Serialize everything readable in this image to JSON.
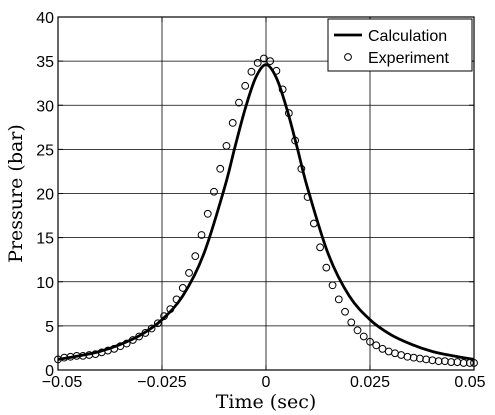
{
  "chart_data": {
    "type": "line",
    "xlabel": "Time (sec)",
    "ylabel": "Pressure (bar)",
    "xlim": [
      -0.05,
      0.05
    ],
    "ylim": [
      0,
      40
    ],
    "x_ticks": [
      -0.05,
      -0.025,
      0,
      0.025,
      0.05
    ],
    "x_tick_labels": [
      "−0.05",
      "−0.025",
      "0",
      "0.025",
      "0.05"
    ],
    "y_ticks": [
      0,
      5,
      10,
      15,
      20,
      25,
      30,
      35,
      40
    ],
    "y_tick_labels": [
      "0",
      "5",
      "10",
      "15",
      "20",
      "25",
      "30",
      "35",
      "40"
    ],
    "grid": true,
    "legend_position": "top-right",
    "series": [
      {
        "name": "Calculation",
        "style": "solid-line",
        "color": "#000000",
        "x": [
          -0.05,
          -0.045,
          -0.04,
          -0.035,
          -0.03,
          -0.025,
          -0.02,
          -0.015,
          -0.01,
          -0.0075,
          -0.005,
          -0.0025,
          0,
          0.0025,
          0.005,
          0.0075,
          0.01,
          0.015,
          0.02,
          0.025,
          0.03,
          0.035,
          0.04,
          0.045,
          0.05
        ],
        "y": [
          1.2,
          1.6,
          2.1,
          2.9,
          4.0,
          5.7,
          8.4,
          13.1,
          20.6,
          25.2,
          29.6,
          33.1,
          34.6,
          33.1,
          29.6,
          25.2,
          20.6,
          13.1,
          8.4,
          5.7,
          4.0,
          2.9,
          2.1,
          1.6,
          1.2
        ]
      },
      {
        "name": "Experiment",
        "style": "open-circle-markers",
        "color": "#000000",
        "x": [
          -0.05,
          -0.0485,
          -0.047,
          -0.0455,
          -0.044,
          -0.0425,
          -0.041,
          -0.0395,
          -0.038,
          -0.0365,
          -0.035,
          -0.0335,
          -0.032,
          -0.0305,
          -0.029,
          -0.0275,
          -0.026,
          -0.0245,
          -0.023,
          -0.0215,
          -0.02,
          -0.0185,
          -0.017,
          -0.0155,
          -0.014,
          -0.0125,
          -0.011,
          -0.0095,
          -0.008,
          -0.0065,
          -0.005,
          -0.0035,
          -0.002,
          -0.0005,
          0.001,
          0.0025,
          0.004,
          0.0055,
          0.007,
          0.0085,
          0.01,
          0.0115,
          0.013,
          0.0145,
          0.016,
          0.0175,
          0.019,
          0.0205,
          0.022,
          0.0235,
          0.025,
          0.0265,
          0.028,
          0.0295,
          0.031,
          0.0325,
          0.034,
          0.0355,
          0.037,
          0.0385,
          0.04,
          0.0415,
          0.043,
          0.0445,
          0.046,
          0.0475,
          0.049,
          0.05
        ],
        "y": [
          1.2,
          1.4,
          1.5,
          1.6,
          1.6,
          1.7,
          1.8,
          2.0,
          2.2,
          2.4,
          2.7,
          3.0,
          3.4,
          3.8,
          4.2,
          4.7,
          5.3,
          6.1,
          6.9,
          8.0,
          9.3,
          11.0,
          12.9,
          15.3,
          17.7,
          20.2,
          22.8,
          25.4,
          28.0,
          30.3,
          32.2,
          33.8,
          34.8,
          35.3,
          35.0,
          33.9,
          31.8,
          29.1,
          26.0,
          22.8,
          19.6,
          16.6,
          13.9,
          11.6,
          9.6,
          8.0,
          6.6,
          5.4,
          4.5,
          3.8,
          3.2,
          2.8,
          2.4,
          2.1,
          1.9,
          1.7,
          1.5,
          1.4,
          1.3,
          1.2,
          1.1,
          1.0,
          1.0,
          0.9,
          0.9,
          0.8,
          0.8,
          0.8
        ]
      }
    ]
  }
}
